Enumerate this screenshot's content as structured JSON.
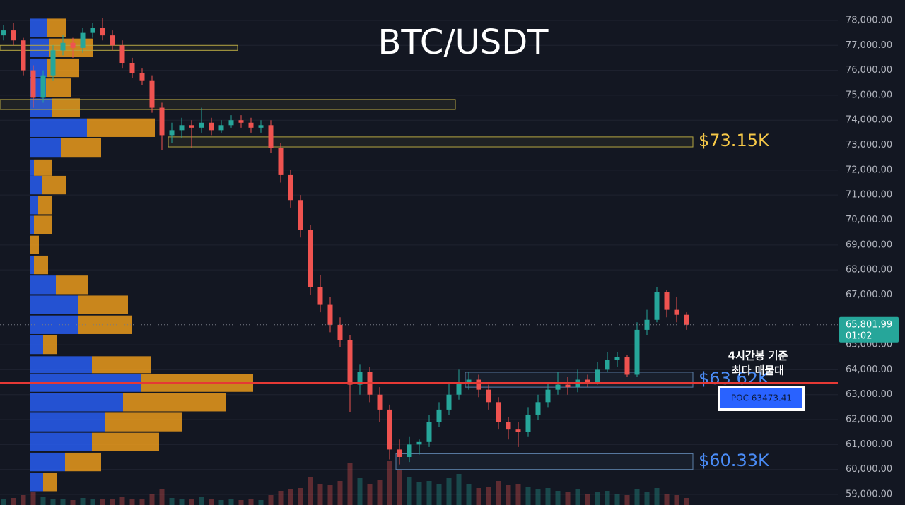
{
  "chart_data": {
    "type": "candlestick",
    "title": "BTC/USDT",
    "open": [
      77400,
      77600,
      77200,
      76000,
      74900,
      75800,
      76800,
      77100,
      76900,
      77500,
      77700,
      77400,
      77000,
      76300,
      75900,
      75600,
      74500,
      73400,
      73600,
      73800,
      73700,
      73900,
      73600,
      73800,
      74000,
      73900,
      73700,
      73800,
      72900,
      71800,
      70800,
      69600,
      67300,
      66600,
      65800,
      65200,
      63400,
      63900,
      63000,
      62400,
      60800,
      60500,
      61000,
      61100,
      61900,
      62400,
      63000,
      63500,
      63600,
      63200,
      62700,
      61900,
      61600,
      61500,
      62200,
      62700,
      63200,
      63400,
      63300,
      63600,
      63500,
      64000,
      64400,
      64500,
      63800,
      65600,
      66000,
      67100,
      66400,
      66200
    ],
    "high": [
      77800,
      77900,
      77300,
      76200,
      76000,
      77000,
      77400,
      77300,
      77700,
      77900,
      78100,
      77600,
      77200,
      76500,
      76100,
      75800,
      74700,
      73900,
      74100,
      74000,
      74500,
      74100,
      74000,
      74200,
      74200,
      74100,
      74000,
      74000,
      73100,
      72000,
      71000,
      69800,
      67800,
      66900,
      66100,
      65400,
      64200,
      64100,
      63300,
      62600,
      61200,
      61300,
      61200,
      62200,
      62700,
      63500,
      64000,
      63900,
      63800,
      63400,
      62900,
      62100,
      61900,
      62500,
      63000,
      63500,
      63900,
      63700,
      64000,
      63800,
      64300,
      64700,
      64700,
      64600,
      65900,
      66400,
      67300,
      67200,
      66900,
      66300
    ],
    "low": [
      77200,
      77000,
      75800,
      74500,
      74700,
      75600,
      76600,
      76500,
      76700,
      77300,
      77200,
      76800,
      76100,
      75700,
      75400,
      74300,
      72800,
      73100,
      73300,
      72900,
      73500,
      73400,
      73500,
      73700,
      73700,
      73500,
      73500,
      72700,
      71500,
      70500,
      69300,
      67000,
      66300,
      65500,
      64900,
      62300,
      63000,
      62700,
      61900,
      60400,
      60200,
      60300,
      60600,
      60900,
      61700,
      62200,
      62800,
      63200,
      62900,
      62400,
      61600,
      61200,
      60900,
      61300,
      62000,
      62500,
      63000,
      63000,
      63100,
      63300,
      63400,
      63900,
      64100,
      63700,
      63700,
      65400,
      65900,
      66100,
      65900,
      65600
    ],
    "close": [
      77600,
      77200,
      76000,
      74900,
      75800,
      76800,
      77100,
      76900,
      77500,
      77700,
      77400,
      77000,
      76300,
      75900,
      75600,
      74500,
      73400,
      73600,
      73800,
      73700,
      73900,
      73600,
      73800,
      74000,
      73900,
      73700,
      73800,
      72900,
      71800,
      70800,
      69600,
      67300,
      66600,
      65800,
      65200,
      63400,
      63900,
      63000,
      62400,
      60800,
      60500,
      61000,
      61100,
      61900,
      62400,
      63000,
      63500,
      63600,
      63200,
      62700,
      61900,
      61600,
      61500,
      62200,
      62700,
      63200,
      63400,
      63300,
      63600,
      63500,
      64000,
      64400,
      64500,
      63800,
      65600,
      66000,
      67100,
      66400,
      66200,
      65801.99
    ],
    "volume": [
      8,
      10,
      14,
      18,
      12,
      9,
      8,
      7,
      10,
      8,
      9,
      8,
      11,
      9,
      8,
      16,
      22,
      10,
      8,
      9,
      12,
      8,
      7,
      8,
      7,
      8,
      7,
      14,
      20,
      22,
      24,
      40,
      30,
      28,
      34,
      60,
      38,
      30,
      36,
      62,
      50,
      40,
      32,
      34,
      30,
      38,
      44,
      30,
      24,
      26,
      34,
      28,
      30,
      26,
      22,
      24,
      20,
      18,
      22,
      16,
      18,
      20,
      16,
      14,
      22,
      18,
      24,
      16,
      14,
      10
    ],
    "up_color": "#26a69a",
    "down_color": "#ef5350",
    "ylim": [
      58575,
      78820
    ],
    "yticks": [
      {
        "value": 59000,
        "label": "59,000.00"
      },
      {
        "value": 60000,
        "label": "60,000.00"
      },
      {
        "value": 61000,
        "label": "61,000.00"
      },
      {
        "value": 62000,
        "label": "62,000.00"
      },
      {
        "value": 63000,
        "label": "63,000.00"
      },
      {
        "value": 64000,
        "label": "64,000.00"
      },
      {
        "value": 65000,
        "label": "65,000.00"
      },
      {
        "value": 67000,
        "label": "67,000.00"
      },
      {
        "value": 68000,
        "label": "68,000.00"
      },
      {
        "value": 69000,
        "label": "69,000.00"
      },
      {
        "value": 70000,
        "label": "70,000.00"
      },
      {
        "value": 71000,
        "label": "71,000.00"
      },
      {
        "value": 72000,
        "label": "72,000.00"
      },
      {
        "value": 73000,
        "label": "73,000.00"
      },
      {
        "value": 74000,
        "label": "74,000.00"
      },
      {
        "value": 75000,
        "label": "75,000.00"
      },
      {
        "value": 76000,
        "label": "76,000.00"
      },
      {
        "value": 77000,
        "label": "77,000.00"
      },
      {
        "value": 78000,
        "label": "78,000.00"
      }
    ],
    "grid": true,
    "volume_profile": {
      "prices": [
        77700,
        76900,
        76100,
        75300,
        74500,
        73700,
        72900,
        72100,
        71400,
        70600,
        69800,
        69000,
        68200,
        67400,
        66600,
        65800,
        65000,
        64200,
        63470,
        62700,
        61900,
        61100,
        60300,
        59500
      ],
      "buy": [
        25,
        28,
        25,
        23,
        31,
        81,
        44,
        6,
        18,
        12,
        6,
        0,
        6,
        37,
        69,
        69,
        19,
        88,
        157,
        132,
        107,
        88,
        50,
        19
      ],
      "sell": [
        26,
        61,
        45,
        35,
        40,
        96,
        57,
        25,
        33,
        20,
        26,
        13,
        20,
        45,
        70,
        76,
        19,
        83,
        159,
        146,
        108,
        95,
        51,
        19
      ],
      "buy_color": "#2962ff",
      "sell_color": "#f7a21b"
    },
    "zones": [
      {
        "low": 76800,
        "high": 77000,
        "from": 0,
        "to": 23,
        "color": "#b5a642"
      },
      {
        "low": 74430,
        "high": 74830,
        "from": 0,
        "to": 45,
        "color": "#b5a642"
      },
      {
        "low": 72930,
        "high": 73330,
        "from": 17,
        "to": 69,
        "color": "#b5a642",
        "value": 73150,
        "label": "$73.15K",
        "label_color": "#f7c948"
      },
      {
        "low": 63300,
        "high": 63900,
        "from": 47,
        "to": 69,
        "color": "#5b7fa8",
        "value": 63620,
        "label": "$63.62K",
        "label_color": "#4a8cf7"
      },
      {
        "low": 60000,
        "high": 60630,
        "from": 40,
        "to": 69,
        "color": "#5b7fa8",
        "value": 60330,
        "label": "$60.33K",
        "label_color": "#4a8cf7"
      }
    ],
    "poc": {
      "value": 63473.41,
      "label": "POC  63473.41",
      "color": "#e53935"
    },
    "current_price": {
      "value": 65801.99,
      "label": "65,801.99"
    },
    "countdown": "01:02",
    "annotation": [
      "4시간봉 기준",
      "최다 매물대"
    ]
  }
}
